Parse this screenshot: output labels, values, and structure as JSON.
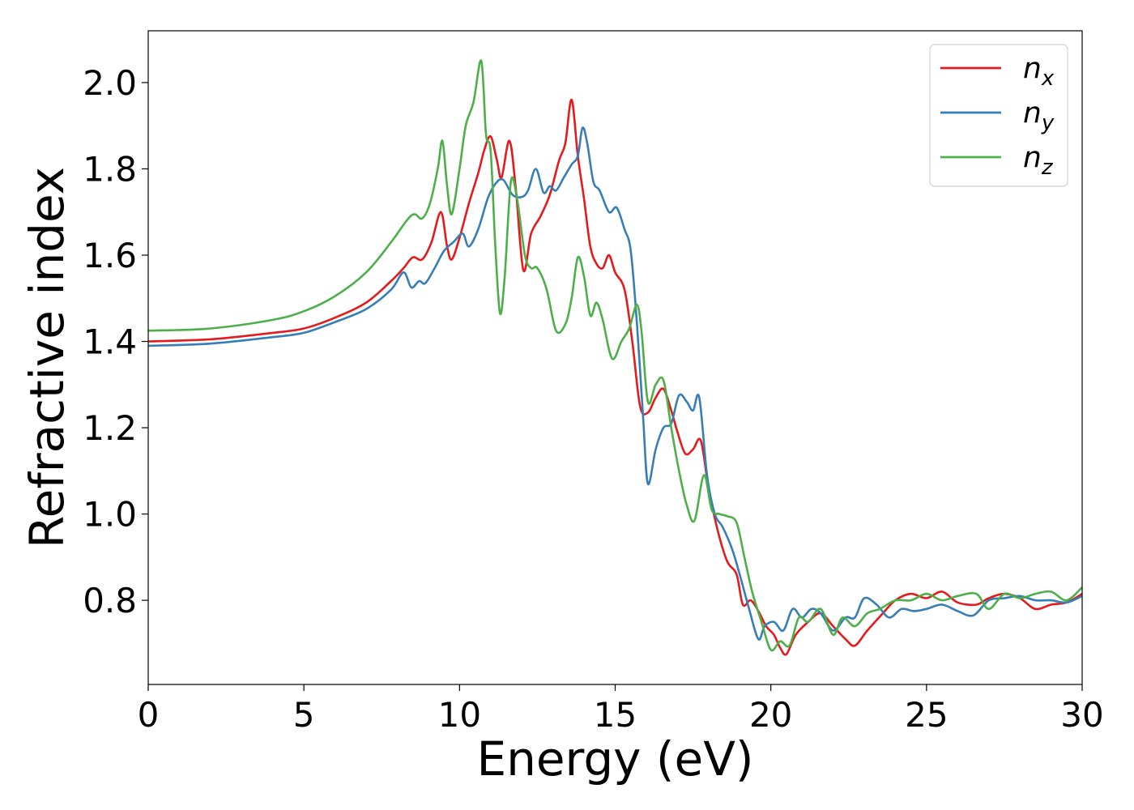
{
  "chart_data": {
    "type": "line",
    "xlabel": "Energy (eV)",
    "ylabel": "Refractive index",
    "xlim": [
      0,
      30
    ],
    "ylim": [
      0.605,
      2.12
    ],
    "xticks": [
      0,
      5,
      10,
      15,
      20,
      25,
      30
    ],
    "xtick_labels": [
      "0",
      "5",
      "10",
      "15",
      "20",
      "25",
      "30"
    ],
    "yticks": [
      0.8,
      1.0,
      1.2,
      1.4,
      1.6,
      1.8,
      2.0
    ],
    "ytick_labels": [
      "0.8",
      "1.0",
      "1.2",
      "1.4",
      "1.6",
      "1.8",
      "2.0"
    ],
    "grid": false,
    "legend_position": "top-right",
    "series": [
      {
        "name": "n_x",
        "legend_base": "n",
        "legend_sub": "x",
        "color": "#e41a1c",
        "points": [
          [
            0,
            1.4
          ],
          [
            2,
            1.405
          ],
          [
            4,
            1.42
          ],
          [
            5,
            1.43
          ],
          [
            6,
            1.455
          ],
          [
            7,
            1.49
          ],
          [
            7.8,
            1.54
          ],
          [
            8.2,
            1.57
          ],
          [
            8.5,
            1.595
          ],
          [
            8.8,
            1.59
          ],
          [
            9.1,
            1.63
          ],
          [
            9.4,
            1.7
          ],
          [
            9.6,
            1.62
          ],
          [
            9.75,
            1.59
          ],
          [
            10.0,
            1.64
          ],
          [
            10.3,
            1.72
          ],
          [
            10.6,
            1.79
          ],
          [
            10.8,
            1.845
          ],
          [
            11.0,
            1.875
          ],
          [
            11.2,
            1.82
          ],
          [
            11.35,
            1.78
          ],
          [
            11.6,
            1.865
          ],
          [
            11.8,
            1.76
          ],
          [
            12.05,
            1.565
          ],
          [
            12.3,
            1.65
          ],
          [
            12.6,
            1.69
          ],
          [
            12.9,
            1.74
          ],
          [
            13.2,
            1.82
          ],
          [
            13.4,
            1.86
          ],
          [
            13.6,
            1.96
          ],
          [
            13.8,
            1.83
          ],
          [
            14.0,
            1.73
          ],
          [
            14.2,
            1.62
          ],
          [
            14.4,
            1.58
          ],
          [
            14.6,
            1.57
          ],
          [
            14.8,
            1.6
          ],
          [
            15.0,
            1.56
          ],
          [
            15.3,
            1.52
          ],
          [
            15.55,
            1.4
          ],
          [
            15.8,
            1.25
          ],
          [
            16.05,
            1.235
          ],
          [
            16.3,
            1.27
          ],
          [
            16.55,
            1.29
          ],
          [
            16.8,
            1.24
          ],
          [
            17.0,
            1.19
          ],
          [
            17.25,
            1.14
          ],
          [
            17.5,
            1.15
          ],
          [
            17.75,
            1.17
          ],
          [
            18.0,
            1.06
          ],
          [
            18.3,
            0.96
          ],
          [
            18.6,
            0.89
          ],
          [
            18.9,
            0.86
          ],
          [
            19.1,
            0.79
          ],
          [
            19.35,
            0.8
          ],
          [
            19.6,
            0.775
          ],
          [
            19.85,
            0.74
          ],
          [
            20.1,
            0.72
          ],
          [
            20.3,
            0.69
          ],
          [
            20.5,
            0.675
          ],
          [
            20.8,
            0.72
          ],
          [
            21.2,
            0.75
          ],
          [
            21.6,
            0.77
          ],
          [
            22.0,
            0.74
          ],
          [
            22.4,
            0.71
          ],
          [
            22.7,
            0.695
          ],
          [
            23.1,
            0.73
          ],
          [
            23.6,
            0.77
          ],
          [
            24.0,
            0.8
          ],
          [
            24.5,
            0.815
          ],
          [
            25.0,
            0.805
          ],
          [
            25.5,
            0.82
          ],
          [
            26.0,
            0.795
          ],
          [
            26.6,
            0.79
          ],
          [
            27.0,
            0.805
          ],
          [
            27.5,
            0.815
          ],
          [
            28.0,
            0.805
          ],
          [
            28.5,
            0.78
          ],
          [
            29.0,
            0.79
          ],
          [
            29.5,
            0.795
          ],
          [
            30.0,
            0.815
          ]
        ]
      },
      {
        "name": "n_y",
        "legend_base": "n",
        "legend_sub": "y",
        "color": "#377eb8",
        "points": [
          [
            0,
            1.39
          ],
          [
            2,
            1.395
          ],
          [
            4,
            1.41
          ],
          [
            5,
            1.42
          ],
          [
            6,
            1.445
          ],
          [
            7,
            1.475
          ],
          [
            7.8,
            1.52
          ],
          [
            8.2,
            1.56
          ],
          [
            8.45,
            1.525
          ],
          [
            8.7,
            1.54
          ],
          [
            8.9,
            1.535
          ],
          [
            9.2,
            1.57
          ],
          [
            9.5,
            1.61
          ],
          [
            9.8,
            1.63
          ],
          [
            10.1,
            1.65
          ],
          [
            10.3,
            1.62
          ],
          [
            10.6,
            1.66
          ],
          [
            10.9,
            1.73
          ],
          [
            11.15,
            1.765
          ],
          [
            11.4,
            1.775
          ],
          [
            11.7,
            1.74
          ],
          [
            12.0,
            1.735
          ],
          [
            12.2,
            1.75
          ],
          [
            12.45,
            1.8
          ],
          [
            12.7,
            1.745
          ],
          [
            12.9,
            1.76
          ],
          [
            13.1,
            1.75
          ],
          [
            13.35,
            1.78
          ],
          [
            13.6,
            1.81
          ],
          [
            13.8,
            1.83
          ],
          [
            13.95,
            1.895
          ],
          [
            14.1,
            1.86
          ],
          [
            14.3,
            1.77
          ],
          [
            14.5,
            1.75
          ],
          [
            14.8,
            1.7
          ],
          [
            15.05,
            1.71
          ],
          [
            15.3,
            1.66
          ],
          [
            15.5,
            1.61
          ],
          [
            15.7,
            1.44
          ],
          [
            15.9,
            1.22
          ],
          [
            16.05,
            1.07
          ],
          [
            16.3,
            1.15
          ],
          [
            16.55,
            1.2
          ],
          [
            16.8,
            1.21
          ],
          [
            17.05,
            1.275
          ],
          [
            17.3,
            1.26
          ],
          [
            17.5,
            1.24
          ],
          [
            17.7,
            1.27
          ],
          [
            17.95,
            1.09
          ],
          [
            18.2,
            1.0
          ],
          [
            18.45,
            0.97
          ],
          [
            18.75,
            0.92
          ],
          [
            19.0,
            0.86
          ],
          [
            19.3,
            0.78
          ],
          [
            19.6,
            0.71
          ],
          [
            19.8,
            0.74
          ],
          [
            20.1,
            0.75
          ],
          [
            20.4,
            0.73
          ],
          [
            20.7,
            0.78
          ],
          [
            21.0,
            0.76
          ],
          [
            21.3,
            0.78
          ],
          [
            21.6,
            0.77
          ],
          [
            22.0,
            0.73
          ],
          [
            22.4,
            0.76
          ],
          [
            22.7,
            0.76
          ],
          [
            23.0,
            0.805
          ],
          [
            23.4,
            0.79
          ],
          [
            23.8,
            0.76
          ],
          [
            24.2,
            0.78
          ],
          [
            24.6,
            0.775
          ],
          [
            25.0,
            0.78
          ],
          [
            25.5,
            0.79
          ],
          [
            26.0,
            0.775
          ],
          [
            26.5,
            0.765
          ],
          [
            27.0,
            0.8
          ],
          [
            27.5,
            0.805
          ],
          [
            28.0,
            0.81
          ],
          [
            28.5,
            0.8
          ],
          [
            29.0,
            0.8
          ],
          [
            29.5,
            0.795
          ],
          [
            30.0,
            0.81
          ]
        ]
      },
      {
        "name": "n_z",
        "legend_base": "n",
        "legend_sub": "z",
        "color": "#4daf4a",
        "points": [
          [
            0,
            1.425
          ],
          [
            2,
            1.43
          ],
          [
            4,
            1.45
          ],
          [
            5,
            1.47
          ],
          [
            6,
            1.505
          ],
          [
            7,
            1.56
          ],
          [
            7.8,
            1.63
          ],
          [
            8.3,
            1.68
          ],
          [
            8.55,
            1.695
          ],
          [
            8.8,
            1.685
          ],
          [
            9.05,
            1.72
          ],
          [
            9.3,
            1.8
          ],
          [
            9.45,
            1.865
          ],
          [
            9.6,
            1.76
          ],
          [
            9.75,
            1.695
          ],
          [
            10.0,
            1.8
          ],
          [
            10.2,
            1.9
          ],
          [
            10.45,
            1.955
          ],
          [
            10.7,
            2.05
          ],
          [
            10.85,
            1.88
          ],
          [
            11.0,
            1.84
          ],
          [
            11.15,
            1.62
          ],
          [
            11.3,
            1.465
          ],
          [
            11.45,
            1.55
          ],
          [
            11.65,
            1.77
          ],
          [
            11.85,
            1.73
          ],
          [
            12.1,
            1.6
          ],
          [
            12.3,
            1.57
          ],
          [
            12.5,
            1.57
          ],
          [
            12.8,
            1.52
          ],
          [
            13.1,
            1.425
          ],
          [
            13.4,
            1.44
          ],
          [
            13.6,
            1.5
          ],
          [
            13.8,
            1.595
          ],
          [
            14.0,
            1.55
          ],
          [
            14.2,
            1.46
          ],
          [
            14.4,
            1.49
          ],
          [
            14.6,
            1.45
          ],
          [
            14.9,
            1.36
          ],
          [
            15.2,
            1.4
          ],
          [
            15.45,
            1.43
          ],
          [
            15.7,
            1.485
          ],
          [
            15.85,
            1.42
          ],
          [
            16.05,
            1.26
          ],
          [
            16.3,
            1.3
          ],
          [
            16.55,
            1.31
          ],
          [
            16.8,
            1.2
          ],
          [
            17.05,
            1.1
          ],
          [
            17.3,
            1.02
          ],
          [
            17.55,
            0.985
          ],
          [
            17.85,
            1.09
          ],
          [
            18.1,
            1.01
          ],
          [
            18.35,
            1.0
          ],
          [
            18.6,
            0.995
          ],
          [
            18.9,
            0.98
          ],
          [
            19.15,
            0.9
          ],
          [
            19.4,
            0.82
          ],
          [
            19.7,
            0.75
          ],
          [
            20.0,
            0.685
          ],
          [
            20.3,
            0.705
          ],
          [
            20.6,
            0.695
          ],
          [
            20.9,
            0.76
          ],
          [
            21.2,
            0.75
          ],
          [
            21.6,
            0.78
          ],
          [
            22.0,
            0.72
          ],
          [
            22.3,
            0.76
          ],
          [
            22.7,
            0.74
          ],
          [
            23.1,
            0.77
          ],
          [
            23.5,
            0.78
          ],
          [
            24.0,
            0.8
          ],
          [
            24.5,
            0.8
          ],
          [
            25.0,
            0.815
          ],
          [
            25.5,
            0.8
          ],
          [
            26.0,
            0.81
          ],
          [
            26.6,
            0.815
          ],
          [
            27.0,
            0.78
          ],
          [
            27.5,
            0.815
          ],
          [
            28.0,
            0.805
          ],
          [
            28.5,
            0.815
          ],
          [
            29.0,
            0.82
          ],
          [
            29.5,
            0.8
          ],
          [
            30.0,
            0.83
          ]
        ]
      }
    ]
  }
}
